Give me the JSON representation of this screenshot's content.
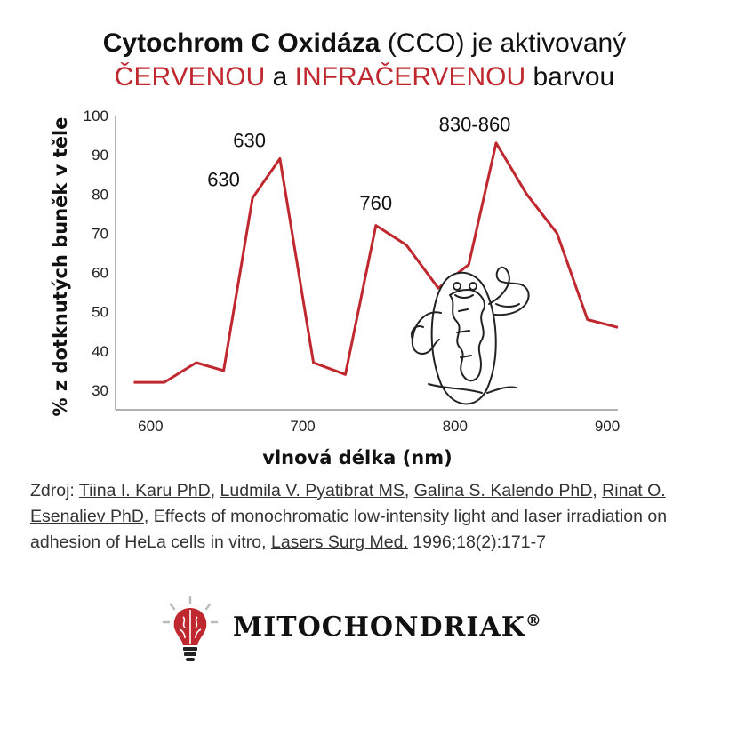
{
  "header": {
    "line1_bold": "Cytochrom C Oxidáza",
    "line1_rest": " (CCO) je aktivovaný",
    "line2_red1": "ČERVENOU",
    "line2_mid": " a ",
    "line2_red2": "INFRAČERVENOU",
    "line2_end": " barvou"
  },
  "colors": {
    "accent": "#c0282f",
    "line": "#c0282f",
    "axis": "#999999"
  },
  "chart_data": {
    "type": "line",
    "xlabel": "vlnová délka (nm)",
    "ylabel": "% z dotknutých buněk v těle",
    "xlim": [
      570,
      900
    ],
    "ylim": [
      25,
      100
    ],
    "x_ticks": [
      600,
      700,
      800,
      900
    ],
    "y_ticks": [
      30,
      40,
      50,
      60,
      70,
      80,
      90,
      100
    ],
    "grid": false,
    "series": [
      {
        "x": [
          582,
          602,
          623,
          641,
          660,
          678,
          700,
          721,
          741,
          761,
          782,
          802,
          820,
          840,
          860,
          880,
          900
        ],
        "values": [
          32,
          32,
          37,
          35,
          79,
          89,
          37,
          34,
          72,
          67,
          56,
          62,
          93,
          80,
          70,
          48,
          46
        ]
      }
    ],
    "annotations": [
      {
        "text": "630",
        "x": 641,
        "y": 82
      },
      {
        "text": "630",
        "x": 658,
        "y": 92
      },
      {
        "text": "760",
        "x": 741,
        "y": 76
      },
      {
        "text": "830-860",
        "x": 806,
        "y": 96
      }
    ]
  },
  "source": {
    "prefix": "Zdroj: ",
    "authors": [
      "Tiina I. Karu PhD",
      "Ludmila V. Pyatibrat MS",
      "Galina S. Kalendo PhD",
      "Rinat O. Esenaliev PhD"
    ],
    "title": "Effects of monochromatic low-intensity light and laser irradiation on adhesion of HeLa cells in vitro, ",
    "journal": "Lasers Surg Med.",
    "citation": " 1996;18(2):171-7"
  },
  "logo": {
    "brand": "MITOCHONDRIAK",
    "reg": "®",
    "icon": "brain-bulb-icon"
  },
  "illustration": {
    "icon": "muscular-mitochondria-icon"
  }
}
